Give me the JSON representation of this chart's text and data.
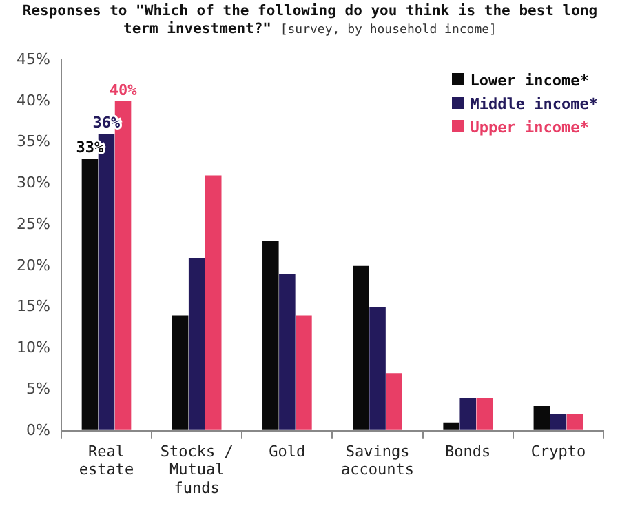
{
  "chart_data": {
    "type": "bar",
    "title": "Responses to \"Which of the following do you think is the best long term investment?\"",
    "subtitle": "[survey, by household income]",
    "categories": [
      "Real estate",
      "Stocks / Mutual funds",
      "Gold",
      "Savings accounts",
      "Bonds",
      "Crypto"
    ],
    "series": [
      {
        "name": "Lower income*",
        "color": "#0a0a0a",
        "values": [
          33,
          14,
          23,
          20,
          1,
          3
        ],
        "value_labels": [
          "33%",
          null,
          null,
          null,
          null,
          null
        ]
      },
      {
        "name": "Middle income*",
        "color": "#231a5c",
        "values": [
          36,
          21,
          19,
          15,
          4,
          2
        ],
        "value_labels": [
          "36%",
          null,
          null,
          null,
          null,
          null
        ]
      },
      {
        "name": "Upper income*",
        "color": "#e83e66",
        "values": [
          40,
          31,
          14,
          7,
          4,
          2
        ],
        "value_labels": [
          "40%",
          null,
          null,
          null,
          null,
          null
        ]
      }
    ],
    "ylim": [
      0,
      45
    ],
    "yticks": [
      {
        "value": 0,
        "label": "0%"
      },
      {
        "value": 5,
        "label": "5%"
      },
      {
        "value": 10,
        "label": "10%"
      },
      {
        "value": 15,
        "label": "15%"
      },
      {
        "value": 20,
        "label": "20%"
      },
      {
        "value": 25,
        "label": "25%"
      },
      {
        "value": 30,
        "label": "30%"
      },
      {
        "value": 35,
        "label": "35%"
      },
      {
        "value": 40,
        "label": "40%"
      },
      {
        "value": 45,
        "label": "45%"
      }
    ],
    "grid": false,
    "legend": "top right"
  }
}
